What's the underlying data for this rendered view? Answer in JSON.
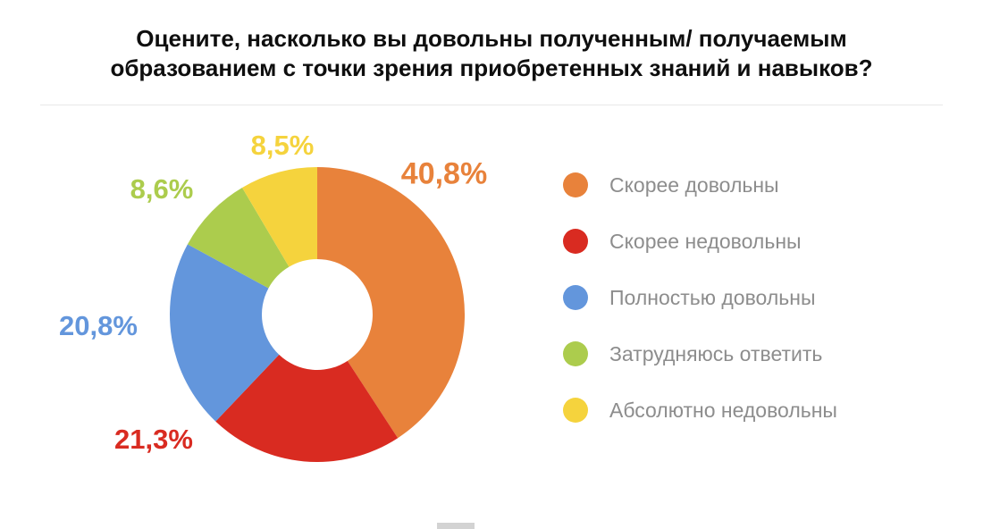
{
  "chart_data": {
    "type": "pie",
    "subtype": "donut",
    "title": "Оцените, насколько вы довольны полученным/ получаемым образованием с точки зрения приобретенных знаний и навыков?",
    "legend_position": "right",
    "total": 100,
    "slices": [
      {
        "label": "Скорее довольны",
        "value": 40.8,
        "display": "40,8%",
        "color": "#E8823B"
      },
      {
        "label": "Скорее недовольны",
        "value": 21.3,
        "display": "21,3%",
        "color": "#D92B21"
      },
      {
        "label": "Полностью довольны",
        "value": 20.8,
        "display": "20,8%",
        "color": "#6396DC"
      },
      {
        "label": "Затрудняюсь ответить",
        "value": 8.6,
        "display": "8,6%",
        "color": "#ACCC4D"
      },
      {
        "label": "Абсолютно недовольны",
        "value": 8.5,
        "display": "8,5%",
        "color": "#F5D33D"
      }
    ]
  }
}
